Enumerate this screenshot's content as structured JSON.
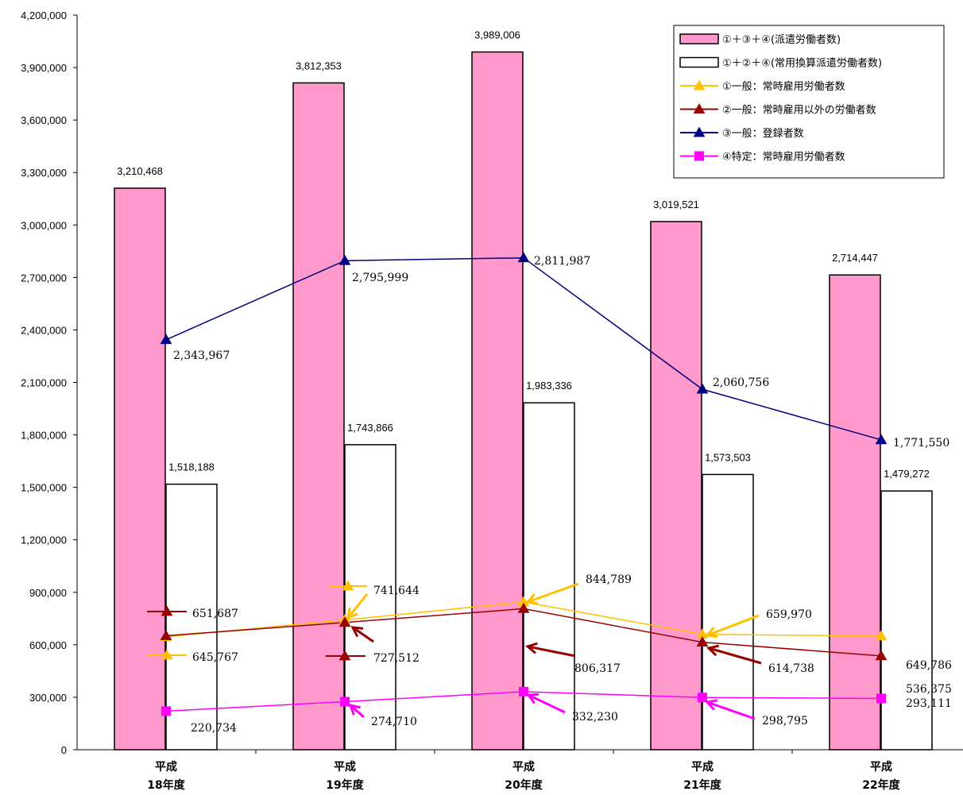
{
  "chart_data": {
    "type": "bar",
    "categories": [
      [
        "平成",
        "18年度"
      ],
      [
        "平成",
        "19年度"
      ],
      [
        "平成",
        "20年度"
      ],
      [
        "平成",
        "21年度"
      ],
      [
        "平成",
        "22年度"
      ]
    ],
    "ylim": [
      0,
      4200000
    ],
    "ytick_step": 300000,
    "grid": false,
    "legend_position": "top-right",
    "bar_series": [
      {
        "name": "①＋③＋④(派遣労働者数)",
        "values": [
          3210468,
          3812353,
          3989006,
          3019521,
          2714447
        ],
        "labels": [
          "3,210,468",
          "3,812,353",
          "3,989,006",
          "3,019,521",
          "2,714,447"
        ],
        "fill": "#ff99cc",
        "stroke": "#000000"
      },
      {
        "name": "①＋②＋④(常用換算派遣労働者数)",
        "values": [
          1518188,
          1743866,
          1983336,
          1573503,
          1479272
        ],
        "labels": [
          "1,518,188",
          "1,743,866",
          "1,983,336",
          "1,573,503",
          "1,479,272"
        ],
        "fill": "#ffffff",
        "stroke": "#000000"
      }
    ],
    "line_series": [
      {
        "name": "①一般：常時雇用労働者数",
        "values": [
          645767,
          741644,
          844789,
          659970,
          649786
        ],
        "labels": [
          "645,767",
          "741,644",
          "844,789",
          "659,970",
          "649,786"
        ],
        "color": "#ffc000",
        "marker": "triangle"
      },
      {
        "name": "②一般：常時雇用以外の労働者数",
        "values": [
          651687,
          727512,
          806317,
          614738,
          536375
        ],
        "labels": [
          "651,687",
          "727,512",
          "806,317",
          "614,738",
          "536,375"
        ],
        "color": "#990000",
        "marker": "triangle"
      },
      {
        "name": "③一般：登録者数",
        "values": [
          2343967,
          2795999,
          2811987,
          2060756,
          1771550
        ],
        "labels": [
          "2,343,967",
          "2,795,999",
          "2,811,987",
          "2,060,756",
          "1,771,550"
        ],
        "color": "#000080",
        "marker": "triangle"
      },
      {
        "name": "④特定：常時雇用労働者数",
        "values": [
          220734,
          274710,
          332230,
          298795,
          293111
        ],
        "labels": [
          "220,734",
          "274,710",
          "332,230",
          "298,795",
          "293,111"
        ],
        "color": "#ff00ff",
        "marker": "square"
      }
    ]
  }
}
